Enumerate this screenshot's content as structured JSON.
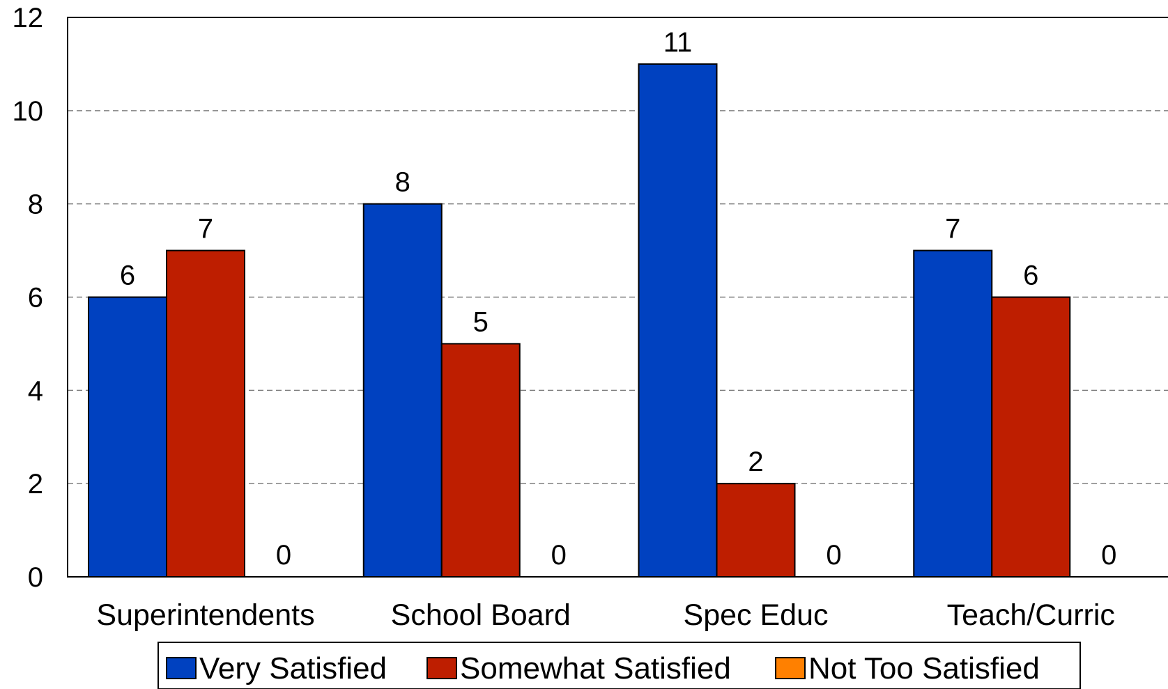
{
  "chart_data": {
    "type": "bar",
    "title": "",
    "xlabel": "",
    "ylabel": "",
    "ylim": [
      0,
      12
    ],
    "yticks": [
      0,
      2,
      4,
      6,
      8,
      10,
      12
    ],
    "grid": "horizontal-dashed",
    "legend_position": "bottom",
    "categories": [
      "Superintendents",
      "School Board",
      "Spec Educ",
      "Teach/Curric"
    ],
    "series": [
      {
        "name": "Very Satisfied",
        "color": "#0041C0",
        "values": [
          6,
          8,
          11,
          7
        ]
      },
      {
        "name": "Somewhat Satisfied",
        "color": "#BE1E00",
        "values": [
          7,
          5,
          2,
          6
        ]
      },
      {
        "name": "Not Too Satisfied",
        "color": "#FF8000",
        "values": [
          0,
          0,
          0,
          0
        ]
      }
    ]
  }
}
